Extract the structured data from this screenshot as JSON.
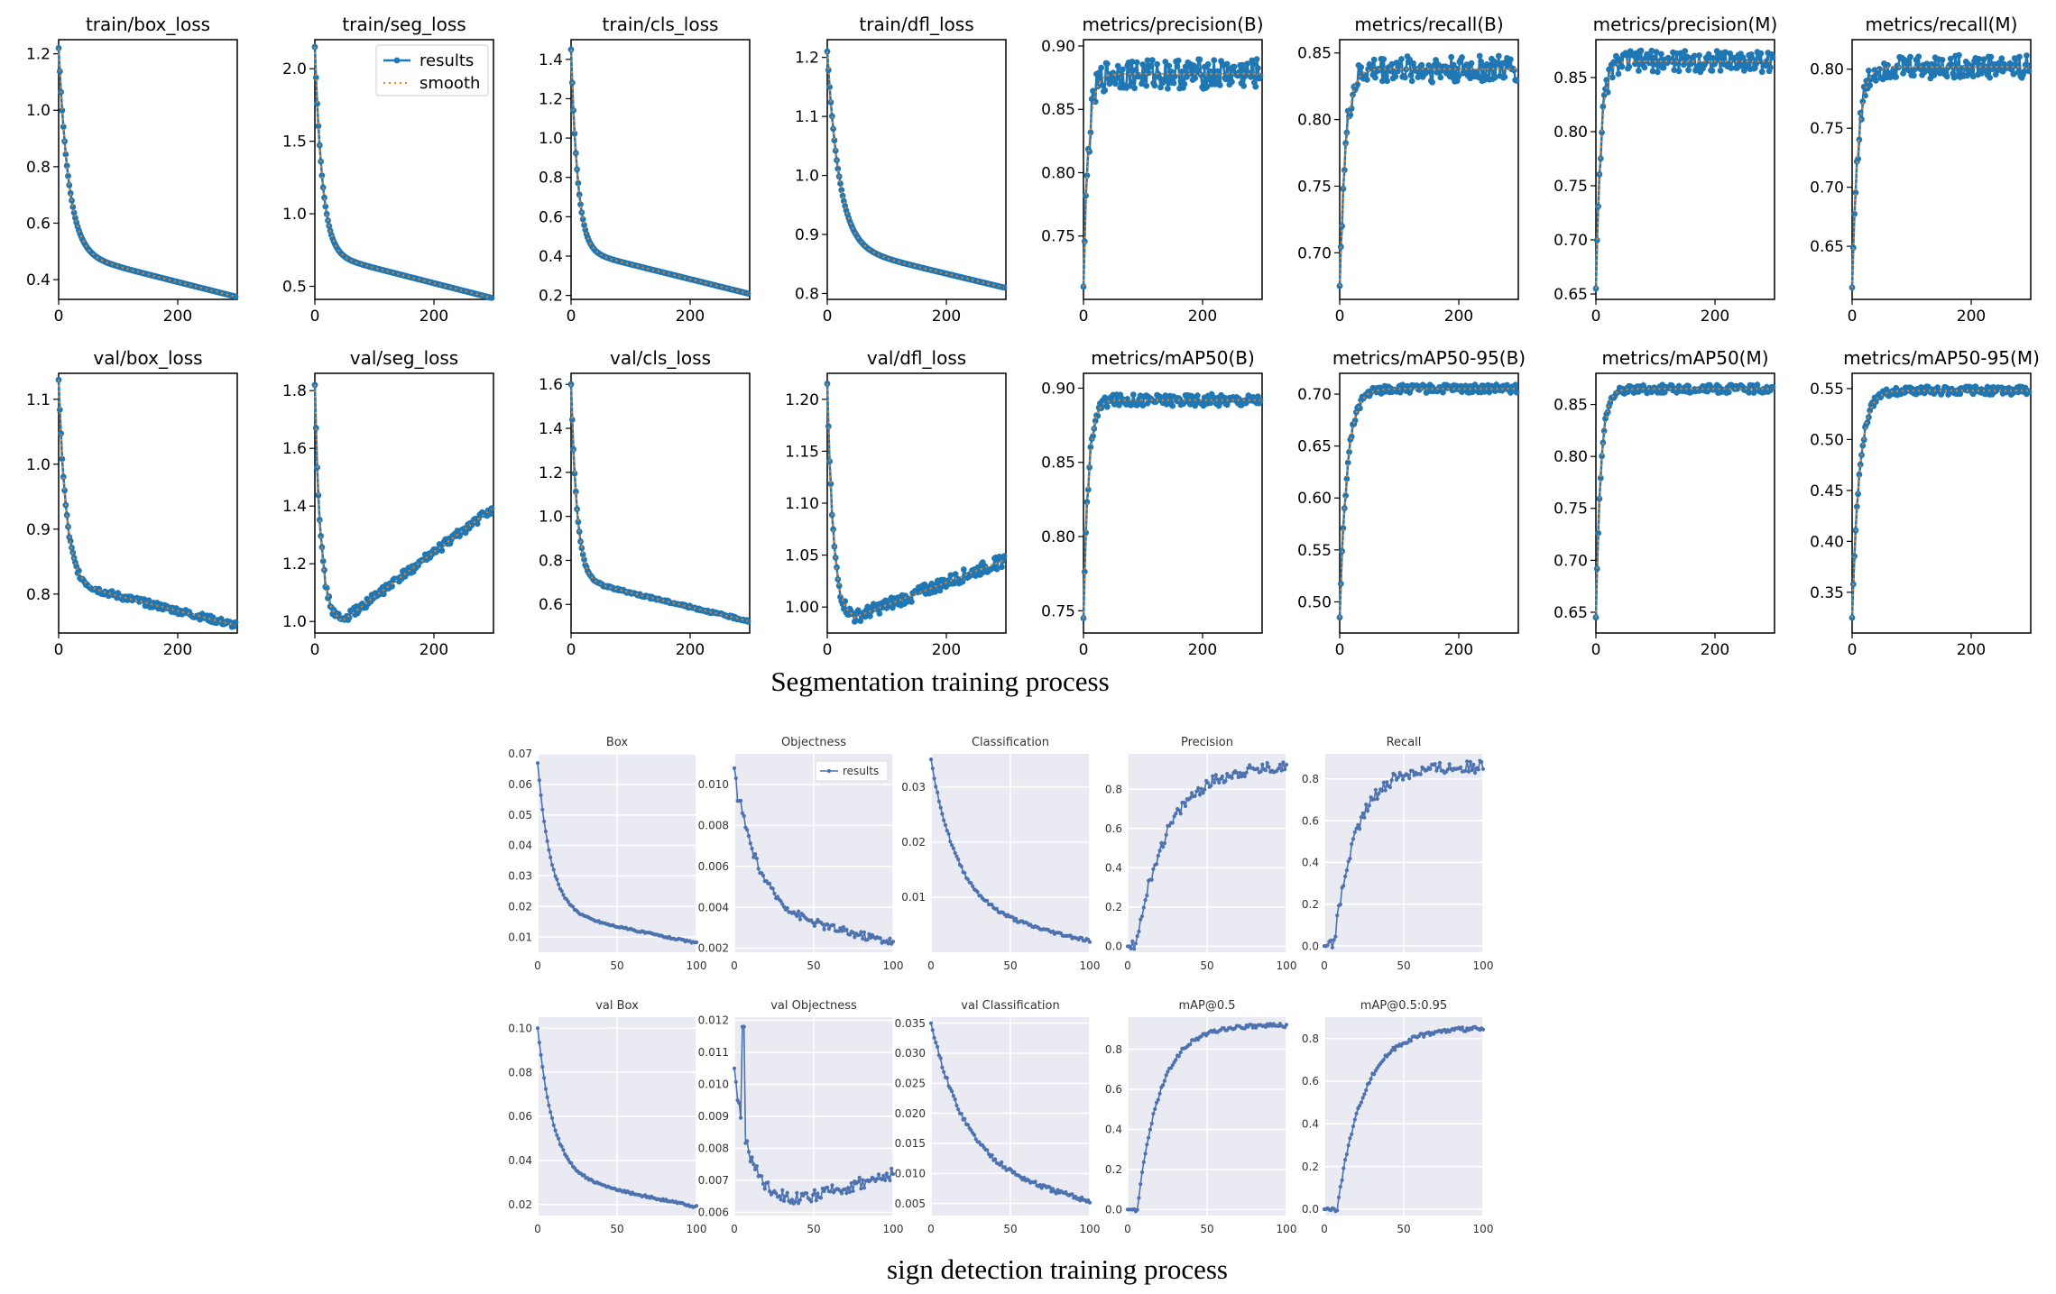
{
  "captions": {
    "segmentation": "Segmentation training process",
    "detection": "sign detection training process"
  },
  "legend": {
    "results": "results",
    "smooth": "smooth"
  },
  "colors": {
    "seg_line": "#1f77b4",
    "seg_smooth": "#ff7f0e",
    "det_line": "#4c72b0",
    "det_bg": "#eaeaf2",
    "grid": "#ffffff"
  },
  "chart_data": [
    {
      "group": "segmentation",
      "type": "line",
      "title": "train/box_loss",
      "x": [
        0,
        300
      ],
      "xticks": [
        0,
        200
      ],
      "ylim": [
        0.33,
        1.25
      ],
      "yticks": [
        0.4,
        0.6,
        0.8,
        1.0,
        1.2
      ],
      "curve": {
        "kind": "decay",
        "start": 1.22,
        "end": 0.34,
        "rate": 0.06,
        "tail": -0.0008
      },
      "legend": false
    },
    {
      "group": "segmentation",
      "type": "line",
      "title": "train/seg_loss",
      "x": [
        0,
        300
      ],
      "xticks": [
        0,
        200
      ],
      "ylim": [
        0.41,
        2.2
      ],
      "yticks": [
        0.5,
        1.0,
        1.5,
        2.0
      ],
      "curve": {
        "kind": "decay",
        "start": 2.15,
        "end": 0.42,
        "rate": 0.08,
        "tail": -0.0005
      },
      "legend": true
    },
    {
      "group": "segmentation",
      "type": "line",
      "title": "train/cls_loss",
      "x": [
        0,
        300
      ],
      "xticks": [
        0,
        200
      ],
      "ylim": [
        0.18,
        1.5
      ],
      "yticks": [
        0.2,
        0.4,
        0.6,
        0.8,
        1.0,
        1.2,
        1.4
      ],
      "curve": {
        "kind": "decay",
        "start": 1.45,
        "end": 0.21,
        "rate": 0.09,
        "tail": -0.0004
      },
      "legend": false
    },
    {
      "group": "segmentation",
      "type": "line",
      "title": "train/dfl_loss",
      "x": [
        0,
        300
      ],
      "xticks": [
        0,
        200
      ],
      "ylim": [
        0.79,
        1.23
      ],
      "yticks": [
        0.8,
        0.9,
        1.0,
        1.1,
        1.2
      ],
      "curve": {
        "kind": "decay",
        "start": 1.21,
        "end": 0.81,
        "rate": 0.05,
        "tail": -0.0005
      },
      "legend": false
    },
    {
      "group": "segmentation",
      "type": "line",
      "title": "metrics/precision(B)",
      "x": [
        0,
        300
      ],
      "xticks": [
        0,
        200
      ],
      "ylim": [
        0.7,
        0.905
      ],
      "yticks": [
        0.75,
        0.8,
        0.85,
        0.9
      ],
      "curve": {
        "kind": "rise",
        "start": 0.71,
        "end": 0.878,
        "rate": 0.12,
        "noise": 0.012
      },
      "legend": false
    },
    {
      "group": "segmentation",
      "type": "line",
      "title": "metrics/recall(B)",
      "x": [
        0,
        300
      ],
      "xticks": [
        0,
        200
      ],
      "ylim": [
        0.665,
        0.86
      ],
      "yticks": [
        0.7,
        0.75,
        0.8,
        0.85
      ],
      "curve": {
        "kind": "rise",
        "start": 0.675,
        "end": 0.838,
        "rate": 0.1,
        "noise": 0.01
      },
      "legend": false
    },
    {
      "group": "segmentation",
      "type": "line",
      "title": "metrics/precision(M)",
      "x": [
        0,
        300
      ],
      "xticks": [
        0,
        200
      ],
      "ylim": [
        0.645,
        0.885
      ],
      "yticks": [
        0.65,
        0.7,
        0.75,
        0.8,
        0.85
      ],
      "curve": {
        "kind": "rise",
        "start": 0.655,
        "end": 0.865,
        "rate": 0.12,
        "noise": 0.01
      },
      "legend": false
    },
    {
      "group": "segmentation",
      "type": "line",
      "title": "metrics/recall(M)",
      "x": [
        0,
        300
      ],
      "xticks": [
        0,
        200
      ],
      "ylim": [
        0.605,
        0.825
      ],
      "yticks": [
        0.65,
        0.7,
        0.75,
        0.8
      ],
      "curve": {
        "kind": "rise",
        "start": 0.615,
        "end": 0.802,
        "rate": 0.1,
        "noise": 0.01
      },
      "legend": false
    },
    {
      "group": "segmentation",
      "type": "line",
      "title": "val/box_loss",
      "x": [
        0,
        300
      ],
      "xticks": [
        0,
        200
      ],
      "ylim": [
        0.74,
        1.14
      ],
      "yticks": [
        0.8,
        0.9,
        1.0,
        1.1
      ],
      "curve": {
        "kind": "decay",
        "start": 1.13,
        "end": 0.752,
        "rate": 0.08,
        "noise": 0.005
      },
      "legend": false
    },
    {
      "group": "segmentation",
      "type": "line",
      "title": "val/seg_loss",
      "x": [
        0,
        300
      ],
      "xticks": [
        0,
        200
      ],
      "ylim": [
        0.96,
        1.86
      ],
      "yticks": [
        1.0,
        1.2,
        1.4,
        1.6,
        1.8
      ],
      "curve": {
        "kind": "dip",
        "start": 1.82,
        "min": 1.0,
        "minx": 45,
        "end": 1.39,
        "noise": 0.015
      },
      "legend": false
    },
    {
      "group": "segmentation",
      "type": "line",
      "title": "val/cls_loss",
      "x": [
        0,
        300
      ],
      "xticks": [
        0,
        200
      ],
      "ylim": [
        0.47,
        1.65
      ],
      "yticks": [
        0.6,
        0.8,
        1.0,
        1.2,
        1.4,
        1.6
      ],
      "curve": {
        "kind": "decay",
        "start": 1.6,
        "end": 0.525,
        "rate": 0.1,
        "noise": 0.005
      },
      "legend": false
    },
    {
      "group": "segmentation",
      "type": "line",
      "title": "val/dfl_loss",
      "x": [
        0,
        300
      ],
      "xticks": [
        0,
        200
      ],
      "ylim": [
        0.975,
        1.225
      ],
      "yticks": [
        1.0,
        1.05,
        1.1,
        1.15,
        1.2
      ],
      "curve": {
        "kind": "dip",
        "start": 1.215,
        "min": 0.99,
        "minx": 45,
        "end": 1.045,
        "noise": 0.006
      },
      "legend": false
    },
    {
      "group": "segmentation",
      "type": "line",
      "title": "metrics/mAP50(B)",
      "x": [
        0,
        300
      ],
      "xticks": [
        0,
        200
      ],
      "ylim": [
        0.735,
        0.91
      ],
      "yticks": [
        0.75,
        0.8,
        0.85,
        0.9
      ],
      "curve": {
        "kind": "rise",
        "start": 0.745,
        "end": 0.892,
        "rate": 0.12,
        "noise": 0.004
      },
      "legend": false
    },
    {
      "group": "segmentation",
      "type": "line",
      "title": "metrics/mAP50-95(B)",
      "x": [
        0,
        300
      ],
      "xticks": [
        0,
        200
      ],
      "ylim": [
        0.47,
        0.72
      ],
      "yticks": [
        0.5,
        0.55,
        0.6,
        0.65,
        0.7
      ],
      "curve": {
        "kind": "rise",
        "start": 0.485,
        "end": 0.705,
        "rate": 0.08,
        "noise": 0.004
      },
      "legend": false
    },
    {
      "group": "segmentation",
      "type": "line",
      "title": "metrics/mAP50(M)",
      "x": [
        0,
        300
      ],
      "xticks": [
        0,
        200
      ],
      "ylim": [
        0.63,
        0.88
      ],
      "yticks": [
        0.65,
        0.7,
        0.75,
        0.8,
        0.85
      ],
      "curve": {
        "kind": "rise",
        "start": 0.645,
        "end": 0.865,
        "rate": 0.12,
        "noise": 0.004
      },
      "legend": false
    },
    {
      "group": "segmentation",
      "type": "line",
      "title": "metrics/mAP50-95(M)",
      "x": [
        0,
        300
      ],
      "xticks": [
        0,
        200
      ],
      "ylim": [
        0.31,
        0.565
      ],
      "yticks": [
        0.35,
        0.4,
        0.45,
        0.5,
        0.55
      ],
      "curve": {
        "kind": "rise",
        "start": 0.325,
        "end": 0.548,
        "rate": 0.08,
        "noise": 0.004
      },
      "legend": false
    },
    {
      "group": "detection",
      "type": "line",
      "title": "Box",
      "x": [
        0,
        100
      ],
      "xticks": [
        0,
        50,
        100
      ],
      "ylim": [
        0.005,
        0.07
      ],
      "yticks": [
        0.01,
        0.02,
        0.03,
        0.04,
        0.05,
        0.06,
        0.07
      ],
      "curve": {
        "kind": "decay",
        "start": 0.067,
        "end": 0.008,
        "rate": 0.12,
        "noise": 0.0003
      },
      "legend": false
    },
    {
      "group": "detection",
      "type": "line",
      "title": "Objectness",
      "x": [
        0,
        100
      ],
      "xticks": [
        0,
        50,
        100
      ],
      "ylim": [
        0.0018,
        0.0115
      ],
      "yticks": [
        0.002,
        0.004,
        0.006,
        0.008,
        0.01
      ],
      "curve": {
        "kind": "decay",
        "start": 0.0108,
        "end": 0.0023,
        "rate": 0.07,
        "noise": 0.0002,
        "spike": [
          3,
          0.0092
        ]
      },
      "legend": true
    },
    {
      "group": "detection",
      "type": "line",
      "title": "Classification",
      "x": [
        0,
        100
      ],
      "xticks": [
        0,
        50,
        100
      ],
      "ylim": [
        0.0,
        0.036
      ],
      "yticks": [
        0.01,
        0.02,
        0.03
      ],
      "curve": {
        "kind": "decay",
        "start": 0.035,
        "end": 0.002,
        "rate": 0.06,
        "noise": 0.0003
      },
      "legend": false
    },
    {
      "group": "detection",
      "type": "line",
      "title": "Precision",
      "x": [
        0,
        100
      ],
      "xticks": [
        0,
        50,
        100
      ],
      "ylim": [
        -0.03,
        0.98
      ],
      "yticks": [
        0.0,
        0.2,
        0.4,
        0.6,
        0.8
      ],
      "curve": {
        "kind": "step",
        "start": 0.0,
        "end": 0.92,
        "onset": 5,
        "rate": 0.05,
        "noise": 0.03
      },
      "legend": false
    },
    {
      "group": "detection",
      "type": "line",
      "title": "Recall",
      "x": [
        0,
        100
      ],
      "xticks": [
        0,
        50,
        100
      ],
      "ylim": [
        -0.03,
        0.92
      ],
      "yticks": [
        0.0,
        0.2,
        0.4,
        0.6,
        0.8
      ],
      "curve": {
        "kind": "step",
        "start": 0.0,
        "end": 0.86,
        "onset": 6,
        "rate": 0.07,
        "noise": 0.03
      },
      "legend": false
    },
    {
      "group": "detection",
      "type": "line",
      "title": "val Box",
      "x": [
        0,
        100
      ],
      "xticks": [
        0,
        50,
        100
      ],
      "ylim": [
        0.015,
        0.105
      ],
      "yticks": [
        0.02,
        0.04,
        0.06,
        0.08,
        0.1
      ],
      "curve": {
        "kind": "decay",
        "start": 0.1,
        "end": 0.019,
        "rate": 0.1,
        "noise": 0.0005
      },
      "legend": false
    },
    {
      "group": "detection",
      "type": "line",
      "title": "val Objectness",
      "x": [
        0,
        100
      ],
      "xticks": [
        0,
        50,
        100
      ],
      "ylim": [
        0.0059,
        0.0121
      ],
      "yticks": [
        0.006,
        0.007,
        0.008,
        0.009,
        0.01,
        0.011,
        0.012
      ],
      "curve": {
        "kind": "dip",
        "start": 0.0105,
        "min": 0.0064,
        "minx": 42,
        "end": 0.0072,
        "noise": 0.0002,
        "spike": [
          6,
          0.0118
        ]
      },
      "legend": false
    },
    {
      "group": "detection",
      "type": "line",
      "title": "val Classification",
      "x": [
        0,
        100
      ],
      "xticks": [
        0,
        50,
        100
      ],
      "ylim": [
        0.003,
        0.036
      ],
      "yticks": [
        0.005,
        0.01,
        0.015,
        0.02,
        0.025,
        0.03,
        0.035
      ],
      "curve": {
        "kind": "decay",
        "start": 0.035,
        "end": 0.0052,
        "rate": 0.045,
        "noise": 0.0004
      },
      "legend": false
    },
    {
      "group": "detection",
      "type": "line",
      "title": "mAP@0.5",
      "x": [
        0,
        100
      ],
      "xticks": [
        0,
        50,
        100
      ],
      "ylim": [
        -0.03,
        0.96
      ],
      "yticks": [
        0.0,
        0.2,
        0.4,
        0.6,
        0.8
      ],
      "curve": {
        "kind": "step",
        "start": 0.0,
        "end": 0.92,
        "onset": 6,
        "rate": 0.07,
        "noise": 0.01
      },
      "legend": false
    },
    {
      "group": "detection",
      "type": "line",
      "title": "mAP@0.5:0.95",
      "x": [
        0,
        100
      ],
      "xticks": [
        0,
        50,
        100
      ],
      "ylim": [
        -0.03,
        0.9
      ],
      "yticks": [
        0.0,
        0.2,
        0.4,
        0.6,
        0.8
      ],
      "curve": {
        "kind": "step",
        "start": 0.0,
        "end": 0.85,
        "onset": 8,
        "rate": 0.06,
        "noise": 0.01
      },
      "legend": false
    }
  ]
}
